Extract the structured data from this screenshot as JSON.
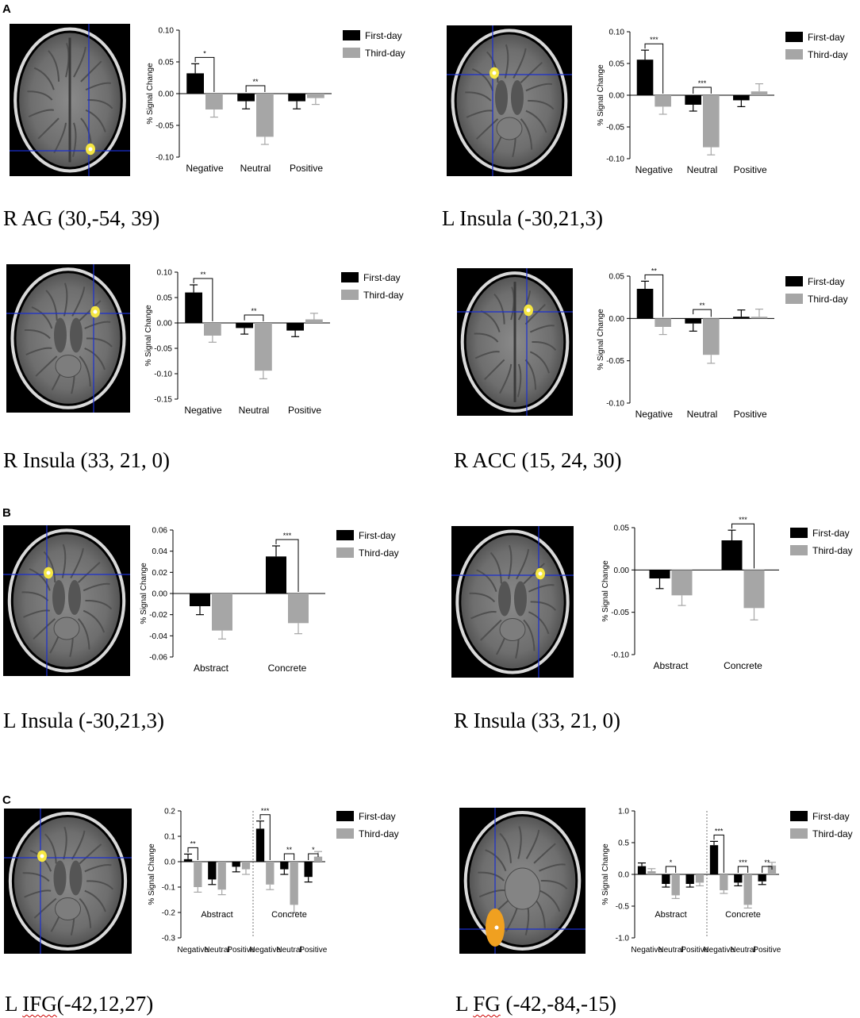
{
  "panel_labels": [
    "A",
    "B",
    "C"
  ],
  "legend": {
    "first_day": "First-day",
    "third_day": "Third-day"
  },
  "ylabel": "% Signal Change",
  "colors": {
    "first_day": "#000000",
    "third_day": "#a6a6a6",
    "activation": "#f5e642",
    "crosshair": "#1a2fd0"
  },
  "captions": {
    "a1": "R AG (30,-54, 39)",
    "a2": "L Insula (-30,21,3)",
    "a3": "R Insula (33, 21, 0)",
    "a4": "R ACC (15, 24, 30)",
    "b1": "L Insula (-30,21,3)",
    "b2": "R Insula (33, 21, 0)",
    "c1_prefix": "L ",
    "c1_underlined": "IFG",
    "c1_suffix": "(-42,12,27)",
    "c2_prefix": "L ",
    "c2_underlined": "FG",
    "c2_suffix": " (-42,-84,-15)"
  },
  "chart_data": [
    {
      "id": "a1",
      "type": "bar",
      "ylabel": "% Signal Change",
      "categories": [
        "Negative",
        "Neutral",
        "Positive"
      ],
      "series": [
        {
          "name": "First-day",
          "values": [
            0.032,
            -0.012,
            -0.012
          ],
          "errors": [
            0.015,
            0.012,
            0.012
          ]
        },
        {
          "name": "Third-day",
          "values": [
            -0.025,
            -0.068,
            -0.007
          ],
          "errors": [
            0.012,
            0.012,
            0.01
          ]
        }
      ],
      "ylim": [
        -0.1,
        0.1
      ],
      "yticks": [
        "0.10",
        "0.05",
        "0.00",
        "-0.05",
        "-0.10"
      ],
      "yticks_values": [
        0.1,
        0.05,
        0,
        -0.05,
        -0.1
      ],
      "significance": [
        {
          "category": 0,
          "label": "*"
        },
        {
          "category": 1,
          "label": "**"
        }
      ]
    },
    {
      "id": "a2",
      "type": "bar",
      "ylabel": "% Signal Change",
      "categories": [
        "Negative",
        "Neutral",
        "Positive"
      ],
      "series": [
        {
          "name": "First-day",
          "values": [
            0.056,
            -0.015,
            -0.008
          ],
          "errors": [
            0.015,
            0.01,
            0.01
          ]
        },
        {
          "name": "Third-day",
          "values": [
            -0.018,
            -0.082,
            0.006
          ],
          "errors": [
            0.012,
            0.012,
            0.012
          ]
        }
      ],
      "ylim": [
        -0.1,
        0.1
      ],
      "yticks": [
        "0.10",
        "0.05",
        "0.00",
        "-0.05",
        "-0.10"
      ],
      "yticks_values": [
        0.1,
        0.05,
        0,
        -0.05,
        -0.1
      ],
      "significance": [
        {
          "category": 0,
          "label": "***"
        },
        {
          "category": 1,
          "label": "***"
        }
      ]
    },
    {
      "id": "a3",
      "type": "bar",
      "ylabel": "% Signal Change",
      "categories": [
        "Negative",
        "Neutral",
        "Positive"
      ],
      "series": [
        {
          "name": "First-day",
          "values": [
            0.06,
            -0.01,
            -0.015
          ],
          "errors": [
            0.015,
            0.012,
            0.012
          ]
        },
        {
          "name": "Third-day",
          "values": [
            -0.025,
            -0.094,
            0.007
          ],
          "errors": [
            0.013,
            0.016,
            0.012
          ]
        }
      ],
      "ylim": [
        -0.15,
        0.1
      ],
      "yticks": [
        "0.10",
        "0.05",
        "0.00",
        "-0.05",
        "-0.10",
        "-0.15"
      ],
      "yticks_values": [
        0.1,
        0.05,
        0,
        -0.05,
        -0.1,
        -0.15
      ],
      "significance": [
        {
          "category": 0,
          "label": "**"
        },
        {
          "category": 1,
          "label": "**"
        }
      ]
    },
    {
      "id": "a4",
      "type": "bar",
      "ylabel": "% Signal Change",
      "categories": [
        "Negative",
        "Neutral",
        "Positive"
      ],
      "series": [
        {
          "name": "First-day",
          "values": [
            0.035,
            -0.006,
            0.002
          ],
          "errors": [
            0.009,
            0.009,
            0.008
          ]
        },
        {
          "name": "Third-day",
          "values": [
            -0.01,
            -0.043,
            0.002
          ],
          "errors": [
            0.009,
            0.01,
            0.009
          ]
        }
      ],
      "ylim": [
        -0.1,
        0.05
      ],
      "yticks": [
        "0.05",
        "0.00",
        "-0.05",
        "-0.10"
      ],
      "yticks_values": [
        0.05,
        0,
        -0.05,
        -0.1
      ],
      "significance": [
        {
          "category": 0,
          "label": "**"
        },
        {
          "category": 1,
          "label": "**"
        }
      ]
    },
    {
      "id": "b1",
      "type": "bar",
      "ylabel": "% Signal Change",
      "categories": [
        "Abstract",
        "Concrete"
      ],
      "series": [
        {
          "name": "First-day",
          "values": [
            -0.012,
            0.035
          ],
          "errors": [
            0.008,
            0.01
          ]
        },
        {
          "name": "Third-day",
          "values": [
            -0.035,
            -0.028
          ],
          "errors": [
            0.008,
            0.01
          ]
        }
      ],
      "ylim": [
        -0.06,
        0.06
      ],
      "yticks": [
        "0.06",
        "0.04",
        "0.02",
        "0.00",
        "-0.02",
        "-0.04",
        "-0.06"
      ],
      "yticks_values": [
        0.06,
        0.04,
        0.02,
        0,
        -0.02,
        -0.04,
        -0.06
      ],
      "significance": [
        {
          "category": 1,
          "label": "***"
        }
      ]
    },
    {
      "id": "b2",
      "type": "bar",
      "ylabel": "% Signal Change",
      "categories": [
        "Abstract",
        "Concrete"
      ],
      "series": [
        {
          "name": "First-day",
          "values": [
            -0.01,
            0.035
          ],
          "errors": [
            0.012,
            0.012
          ]
        },
        {
          "name": "Third-day",
          "values": [
            -0.03,
            -0.045
          ],
          "errors": [
            0.012,
            0.014
          ]
        }
      ],
      "ylim": [
        -0.1,
        0.05
      ],
      "yticks": [
        "0.05",
        "0.00",
        "-0.05",
        "-0.10"
      ],
      "yticks_values": [
        0.05,
        0,
        -0.05,
        -0.1
      ],
      "significance": [
        {
          "category": 1,
          "label": "***"
        }
      ]
    },
    {
      "id": "c1",
      "type": "bar",
      "ylabel": "% Signal Change",
      "categories": [
        "Negative",
        "Neutral",
        "Positive",
        "Negative",
        "Neutral",
        "Positive"
      ],
      "groups": [
        "Abstract",
        "Concrete"
      ],
      "series": [
        {
          "name": "First-day",
          "values": [
            0.01,
            -0.07,
            -0.02,
            0.13,
            -0.03,
            -0.06
          ],
          "errors": [
            0.02,
            0.02,
            0.02,
            0.03,
            0.02,
            0.02
          ]
        },
        {
          "name": "Third-day",
          "values": [
            -0.1,
            -0.11,
            -0.03,
            -0.09,
            -0.17,
            0.02
          ],
          "errors": [
            0.02,
            0.02,
            0.02,
            0.02,
            0.03,
            0.02
          ]
        }
      ],
      "ylim": [
        -0.3,
        0.2
      ],
      "yticks": [
        "0.2",
        "0.1",
        "0.0",
        "-0.1",
        "-0.2",
        "-0.3"
      ],
      "yticks_values": [
        0.2,
        0.1,
        0,
        -0.1,
        -0.2,
        -0.3
      ],
      "significance": [
        {
          "category": 0,
          "label": "**"
        },
        {
          "category": 3,
          "label": "***"
        },
        {
          "category": 4,
          "label": "**"
        },
        {
          "category": 5,
          "label": "*"
        }
      ]
    },
    {
      "id": "c2",
      "type": "bar",
      "ylabel": "% Signal Change",
      "categories": [
        "Negative",
        "Neutral",
        "Positive",
        "Negative",
        "Neutral",
        "Positive"
      ],
      "groups": [
        "Abstract",
        "Concrete"
      ],
      "series": [
        {
          "name": "First-day",
          "values": [
            0.13,
            -0.15,
            -0.15,
            0.46,
            -0.13,
            -0.11
          ],
          "errors": [
            0.05,
            0.05,
            0.05,
            0.06,
            0.05,
            0.05
          ]
        },
        {
          "name": "Third-day",
          "values": [
            0.05,
            -0.33,
            -0.13,
            -0.25,
            -0.48,
            0.14
          ],
          "errors": [
            0.04,
            0.05,
            0.05,
            0.05,
            0.05,
            0.05
          ]
        }
      ],
      "ylim": [
        -1.0,
        1.0
      ],
      "yticks": [
        "1.0",
        "0.5",
        "0.0",
        "-0.5",
        "-1.0"
      ],
      "yticks_values": [
        1.0,
        0.5,
        0,
        -0.5,
        -1.0
      ],
      "significance": [
        {
          "category": 1,
          "label": "*"
        },
        {
          "category": 3,
          "label": "***"
        },
        {
          "category": 4,
          "label": "***"
        },
        {
          "category": 5,
          "label": "**"
        }
      ]
    }
  ]
}
